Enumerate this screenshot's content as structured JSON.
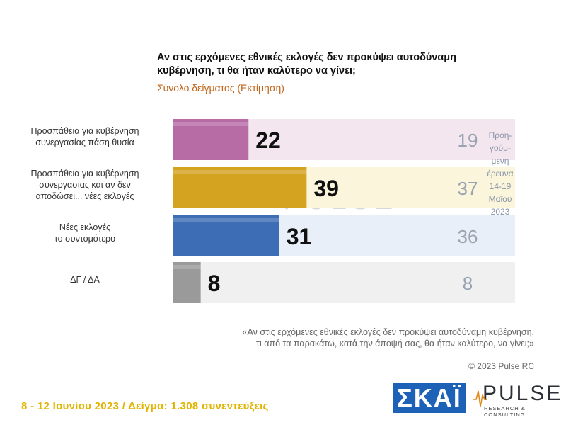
{
  "title": "Αν στις ερχόμενες εθνικές εκλογές δεν προκύψει αυτοδύναμη κυβέρνηση, τι θα ήταν καλύτερο να γίνει;",
  "subtitle": "Σύνολο δείγματος   (Εκτίμηση)",
  "prev_note": [
    "Προη-",
    "γούμ-",
    "μενη",
    "έρευνα",
    "14-19",
    "Μαΐου",
    "2023"
  ],
  "watermark": {
    "big": "PULSE",
    "small": "RESEARCH & CONSULTING"
  },
  "quote": [
    "«Αν στις ερχόμενες εθνικές εκλογές δεν προκύψει αυτοδύναμη κυβέρνηση,",
    "τι από τα παρακάτω, κατά την άποψή σας, θα ήταν καλύτερο, να γίνει;»"
  ],
  "copyright": "© 2023 Pulse RC",
  "footer": "8 - 12  Ιουνίου  2023  /  Δείγμα:  1.308 συνεντεύξεις",
  "logos": {
    "skai": "ΣΚΑΪ",
    "pulse": "PULSE",
    "pulse_tag": "RESEARCH & CONSULTING"
  },
  "chart_data": {
    "type": "bar",
    "orientation": "horizontal",
    "categories": [
      [
        "Προσπάθεια για κυβέρνηση",
        "συνεργασίας πάση θυσία"
      ],
      [
        "Προσπάθεια για κυβέρνηση",
        "συνεργασίας και αν δεν",
        "αποδώσει... νέες εκλογές"
      ],
      [
        "Νέες εκλογές",
        "το συντομότερο"
      ],
      [
        "ΔΓ / ΔΑ"
      ]
    ],
    "series": [
      {
        "values": [
          22,
          39,
          31,
          8
        ],
        "colors": [
          "#b86ca6",
          "#d4a320",
          "#3d6db5",
          "#9a9a9a"
        ]
      },
      {
        "values": [
          19,
          37,
          36,
          8
        ]
      }
    ],
    "xlim": [
      0,
      100
    ],
    "bg_colors": [
      "#f3e6ef",
      "#fbf5dc",
      "#e8eff8",
      "#f0f0f0"
    ]
  }
}
